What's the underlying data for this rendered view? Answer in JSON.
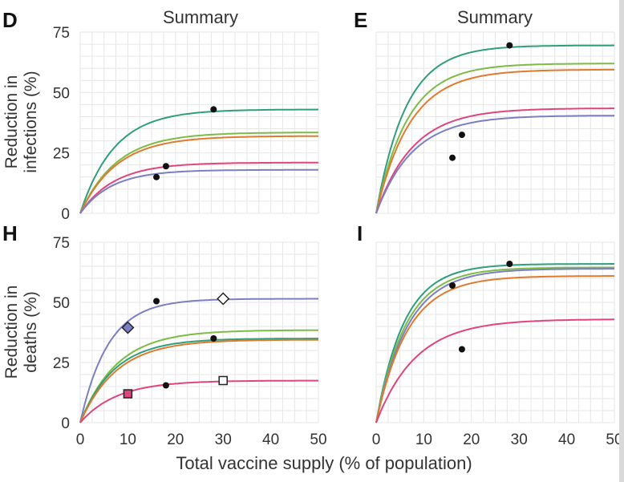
{
  "colors": {
    "teal": "#2e9e7c",
    "green": "#7dbb45",
    "orange": "#e07a2e",
    "pink": "#e0447e",
    "purple": "#7b7fc2",
    "grid": "#e6e6e6",
    "marker": "#111111"
  },
  "figure": {
    "x_axis_label": "Total vaccine supply (% of population)",
    "y_label_infections": [
      "Reduction in",
      "infections (%)"
    ],
    "y_label_deaths": [
      "Reduction in",
      "deaths (%)"
    ],
    "x_ticks": [
      "0",
      "10",
      "20",
      "30",
      "40",
      "50"
    ],
    "y_ticks": [
      "0",
      "25",
      "50",
      "75"
    ]
  },
  "chart_data": [
    {
      "panel": "D",
      "title": "Summary",
      "type": "line",
      "xlim": [
        0,
        50
      ],
      "ylim": [
        0,
        75
      ],
      "series": [
        {
          "color": "teal",
          "plateau": 43,
          "k": 0.14,
          "markers": [
            {
              "x": 28,
              "y": 43,
              "shape": "dot"
            }
          ]
        },
        {
          "color": "green",
          "plateau": 33.5,
          "k": 0.13,
          "markers": []
        },
        {
          "color": "orange",
          "plateau": 32,
          "k": 0.13,
          "markers": []
        },
        {
          "color": "pink",
          "plateau": 21,
          "k": 0.14,
          "markers": [
            {
              "x": 18,
              "y": 19.5,
              "shape": "dot"
            }
          ]
        },
        {
          "color": "purple",
          "plateau": 18,
          "k": 0.15,
          "markers": [
            {
              "x": 16,
              "y": 15,
              "shape": "dot"
            }
          ]
        }
      ]
    },
    {
      "panel": "E",
      "title": "Summary",
      "type": "line",
      "xlim": [
        0,
        50
      ],
      "ylim": [
        0,
        75
      ],
      "series": [
        {
          "color": "teal",
          "plateau": 69.5,
          "k": 0.16,
          "markers": [
            {
              "x": 28,
              "y": 69.5,
              "shape": "dot"
            }
          ]
        },
        {
          "color": "green",
          "plateau": 62,
          "k": 0.15,
          "markers": []
        },
        {
          "color": "orange",
          "plateau": 59.5,
          "k": 0.14,
          "markers": []
        },
        {
          "color": "pink",
          "plateau": 43.5,
          "k": 0.13,
          "markers": [
            {
              "x": 18,
              "y": 32.5,
              "shape": "dot"
            }
          ]
        },
        {
          "color": "purple",
          "plateau": 40.5,
          "k": 0.13,
          "markers": [
            {
              "x": 16,
              "y": 23,
              "shape": "dot"
            }
          ]
        }
      ]
    },
    {
      "panel": "H",
      "title": "",
      "type": "line",
      "xlim": [
        0,
        50
      ],
      "ylim": [
        0,
        75
      ],
      "series": [
        {
          "color": "purple",
          "plateau": 51.5,
          "k": 0.17,
          "markers": [
            {
              "x": 10,
              "y": 39.5,
              "shape": "diamond-filled"
            },
            {
              "x": 16,
              "y": 50.5,
              "shape": "dot"
            },
            {
              "x": 30,
              "y": 51.5,
              "shape": "diamond-open"
            }
          ]
        },
        {
          "color": "green",
          "plateau": 38.5,
          "k": 0.13,
          "markers": []
        },
        {
          "color": "teal",
          "plateau": 35,
          "k": 0.14,
          "markers": [
            {
              "x": 28,
              "y": 35,
              "shape": "dot"
            }
          ]
        },
        {
          "color": "orange",
          "plateau": 34.5,
          "k": 0.13,
          "markers": []
        },
        {
          "color": "pink",
          "plateau": 17.5,
          "k": 0.13,
          "markers": [
            {
              "x": 10,
              "y": 12,
              "shape": "square-filled"
            },
            {
              "x": 18,
              "y": 15.5,
              "shape": "dot"
            },
            {
              "x": 30,
              "y": 17.5,
              "shape": "square-open"
            }
          ]
        }
      ]
    },
    {
      "panel": "I",
      "title": "",
      "type": "line",
      "xlim": [
        0,
        50
      ],
      "ylim": [
        0,
        75
      ],
      "series": [
        {
          "color": "teal",
          "plateau": 66,
          "k": 0.17,
          "markers": [
            {
              "x": 28,
              "y": 66,
              "shape": "dot"
            }
          ]
        },
        {
          "color": "green",
          "plateau": 64.5,
          "k": 0.16,
          "markers": []
        },
        {
          "color": "purple",
          "plateau": 64,
          "k": 0.15,
          "markers": [
            {
              "x": 16,
              "y": 57,
              "shape": "dot"
            }
          ]
        },
        {
          "color": "orange",
          "plateau": 61,
          "k": 0.15,
          "markers": []
        },
        {
          "color": "pink",
          "plateau": 43,
          "k": 0.12,
          "markers": [
            {
              "x": 18,
              "y": 30.5,
              "shape": "dot"
            }
          ]
        }
      ]
    }
  ]
}
